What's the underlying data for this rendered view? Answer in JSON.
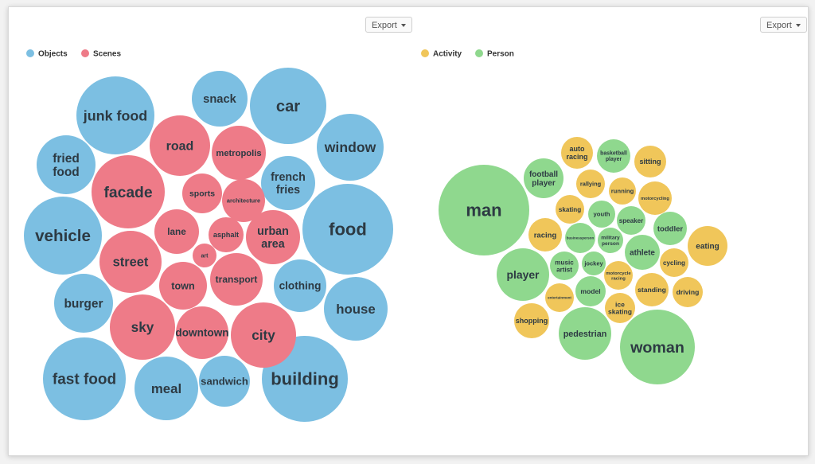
{
  "export_label": "Export",
  "colors": {
    "Objects": "#7cbfe2",
    "Scenes": "#ee7b88",
    "Activity": "#f0c65a",
    "Person": "#8fd88e"
  },
  "chart_data": [
    {
      "type": "bubble",
      "title": "",
      "legend": {
        "placement": "top-left",
        "entries": [
          "Objects",
          "Scenes"
        ]
      },
      "series": [
        {
          "name": "Objects",
          "items": [
            {
              "label": "junk food",
              "value": 49
            },
            {
              "label": "snack",
              "value": 35
            },
            {
              "label": "car",
              "value": 48
            },
            {
              "label": "fried food",
              "value": 37
            },
            {
              "label": "window",
              "value": 42
            },
            {
              "label": "french fries",
              "value": 34
            },
            {
              "label": "vehicle",
              "value": 49
            },
            {
              "label": "food",
              "value": 57
            },
            {
              "label": "clothing",
              "value": 33
            },
            {
              "label": "burger",
              "value": 37
            },
            {
              "label": "house",
              "value": 40
            },
            {
              "label": "fast food",
              "value": 52
            },
            {
              "label": "meal",
              "value": 40
            },
            {
              "label": "sandwich",
              "value": 32
            },
            {
              "label": "building",
              "value": 54
            }
          ]
        },
        {
          "name": "Scenes",
          "items": [
            {
              "label": "road",
              "value": 38
            },
            {
              "label": "metropolis",
              "value": 34
            },
            {
              "label": "facade",
              "value": 46
            },
            {
              "label": "sports",
              "value": 25
            },
            {
              "label": "architecture",
              "value": 27
            },
            {
              "label": "lane",
              "value": 28
            },
            {
              "label": "asphalt",
              "value": 22
            },
            {
              "label": "urban area",
              "value": 34
            },
            {
              "label": "art",
              "value": 15
            },
            {
              "label": "street",
              "value": 39
            },
            {
              "label": "town",
              "value": 30
            },
            {
              "label": "transport",
              "value": 33
            },
            {
              "label": "sky",
              "value": 41
            },
            {
              "label": "downtown",
              "value": 33
            },
            {
              "label": "city",
              "value": 41
            }
          ]
        }
      ]
    },
    {
      "type": "bubble",
      "title": "",
      "legend": {
        "placement": "top-left",
        "entries": [
          "Activity",
          "Person"
        ]
      },
      "series": [
        {
          "name": "Activity",
          "items": [
            {
              "label": "auto racing",
              "value": 20
            },
            {
              "label": "sitting",
              "value": 20
            },
            {
              "label": "rallying",
              "value": 18
            },
            {
              "label": "running",
              "value": 17
            },
            {
              "label": "motorcycling",
              "value": 21
            },
            {
              "label": "skating",
              "value": 18
            },
            {
              "label": "racing",
              "value": 21
            },
            {
              "label": "eating",
              "value": 25
            },
            {
              "label": "cycling",
              "value": 18
            },
            {
              "label": "motorcycle racing",
              "value": 18
            },
            {
              "label": "entertainment",
              "value": 18
            },
            {
              "label": "standing",
              "value": 21
            },
            {
              "label": "driving",
              "value": 19
            },
            {
              "label": "ice skating",
              "value": 19
            },
            {
              "label": "shopping",
              "value": 22
            }
          ]
        },
        {
          "name": "Person",
          "items": [
            {
              "label": "basketball player",
              "value": 21
            },
            {
              "label": "football player",
              "value": 25
            },
            {
              "label": "man",
              "value": 57
            },
            {
              "label": "youth",
              "value": 17
            },
            {
              "label": "speaker",
              "value": 18
            },
            {
              "label": "toddler",
              "value": 21
            },
            {
              "label": "businessperson",
              "value": 19
            },
            {
              "label": "military person",
              "value": 16
            },
            {
              "label": "athlete",
              "value": 22
            },
            {
              "label": "music artist",
              "value": 18
            },
            {
              "label": "jockey",
              "value": 15
            },
            {
              "label": "player",
              "value": 33
            },
            {
              "label": "model",
              "value": 19
            },
            {
              "label": "pedestrian",
              "value": 33
            },
            {
              "label": "woman",
              "value": 47
            }
          ]
        }
      ]
    }
  ]
}
